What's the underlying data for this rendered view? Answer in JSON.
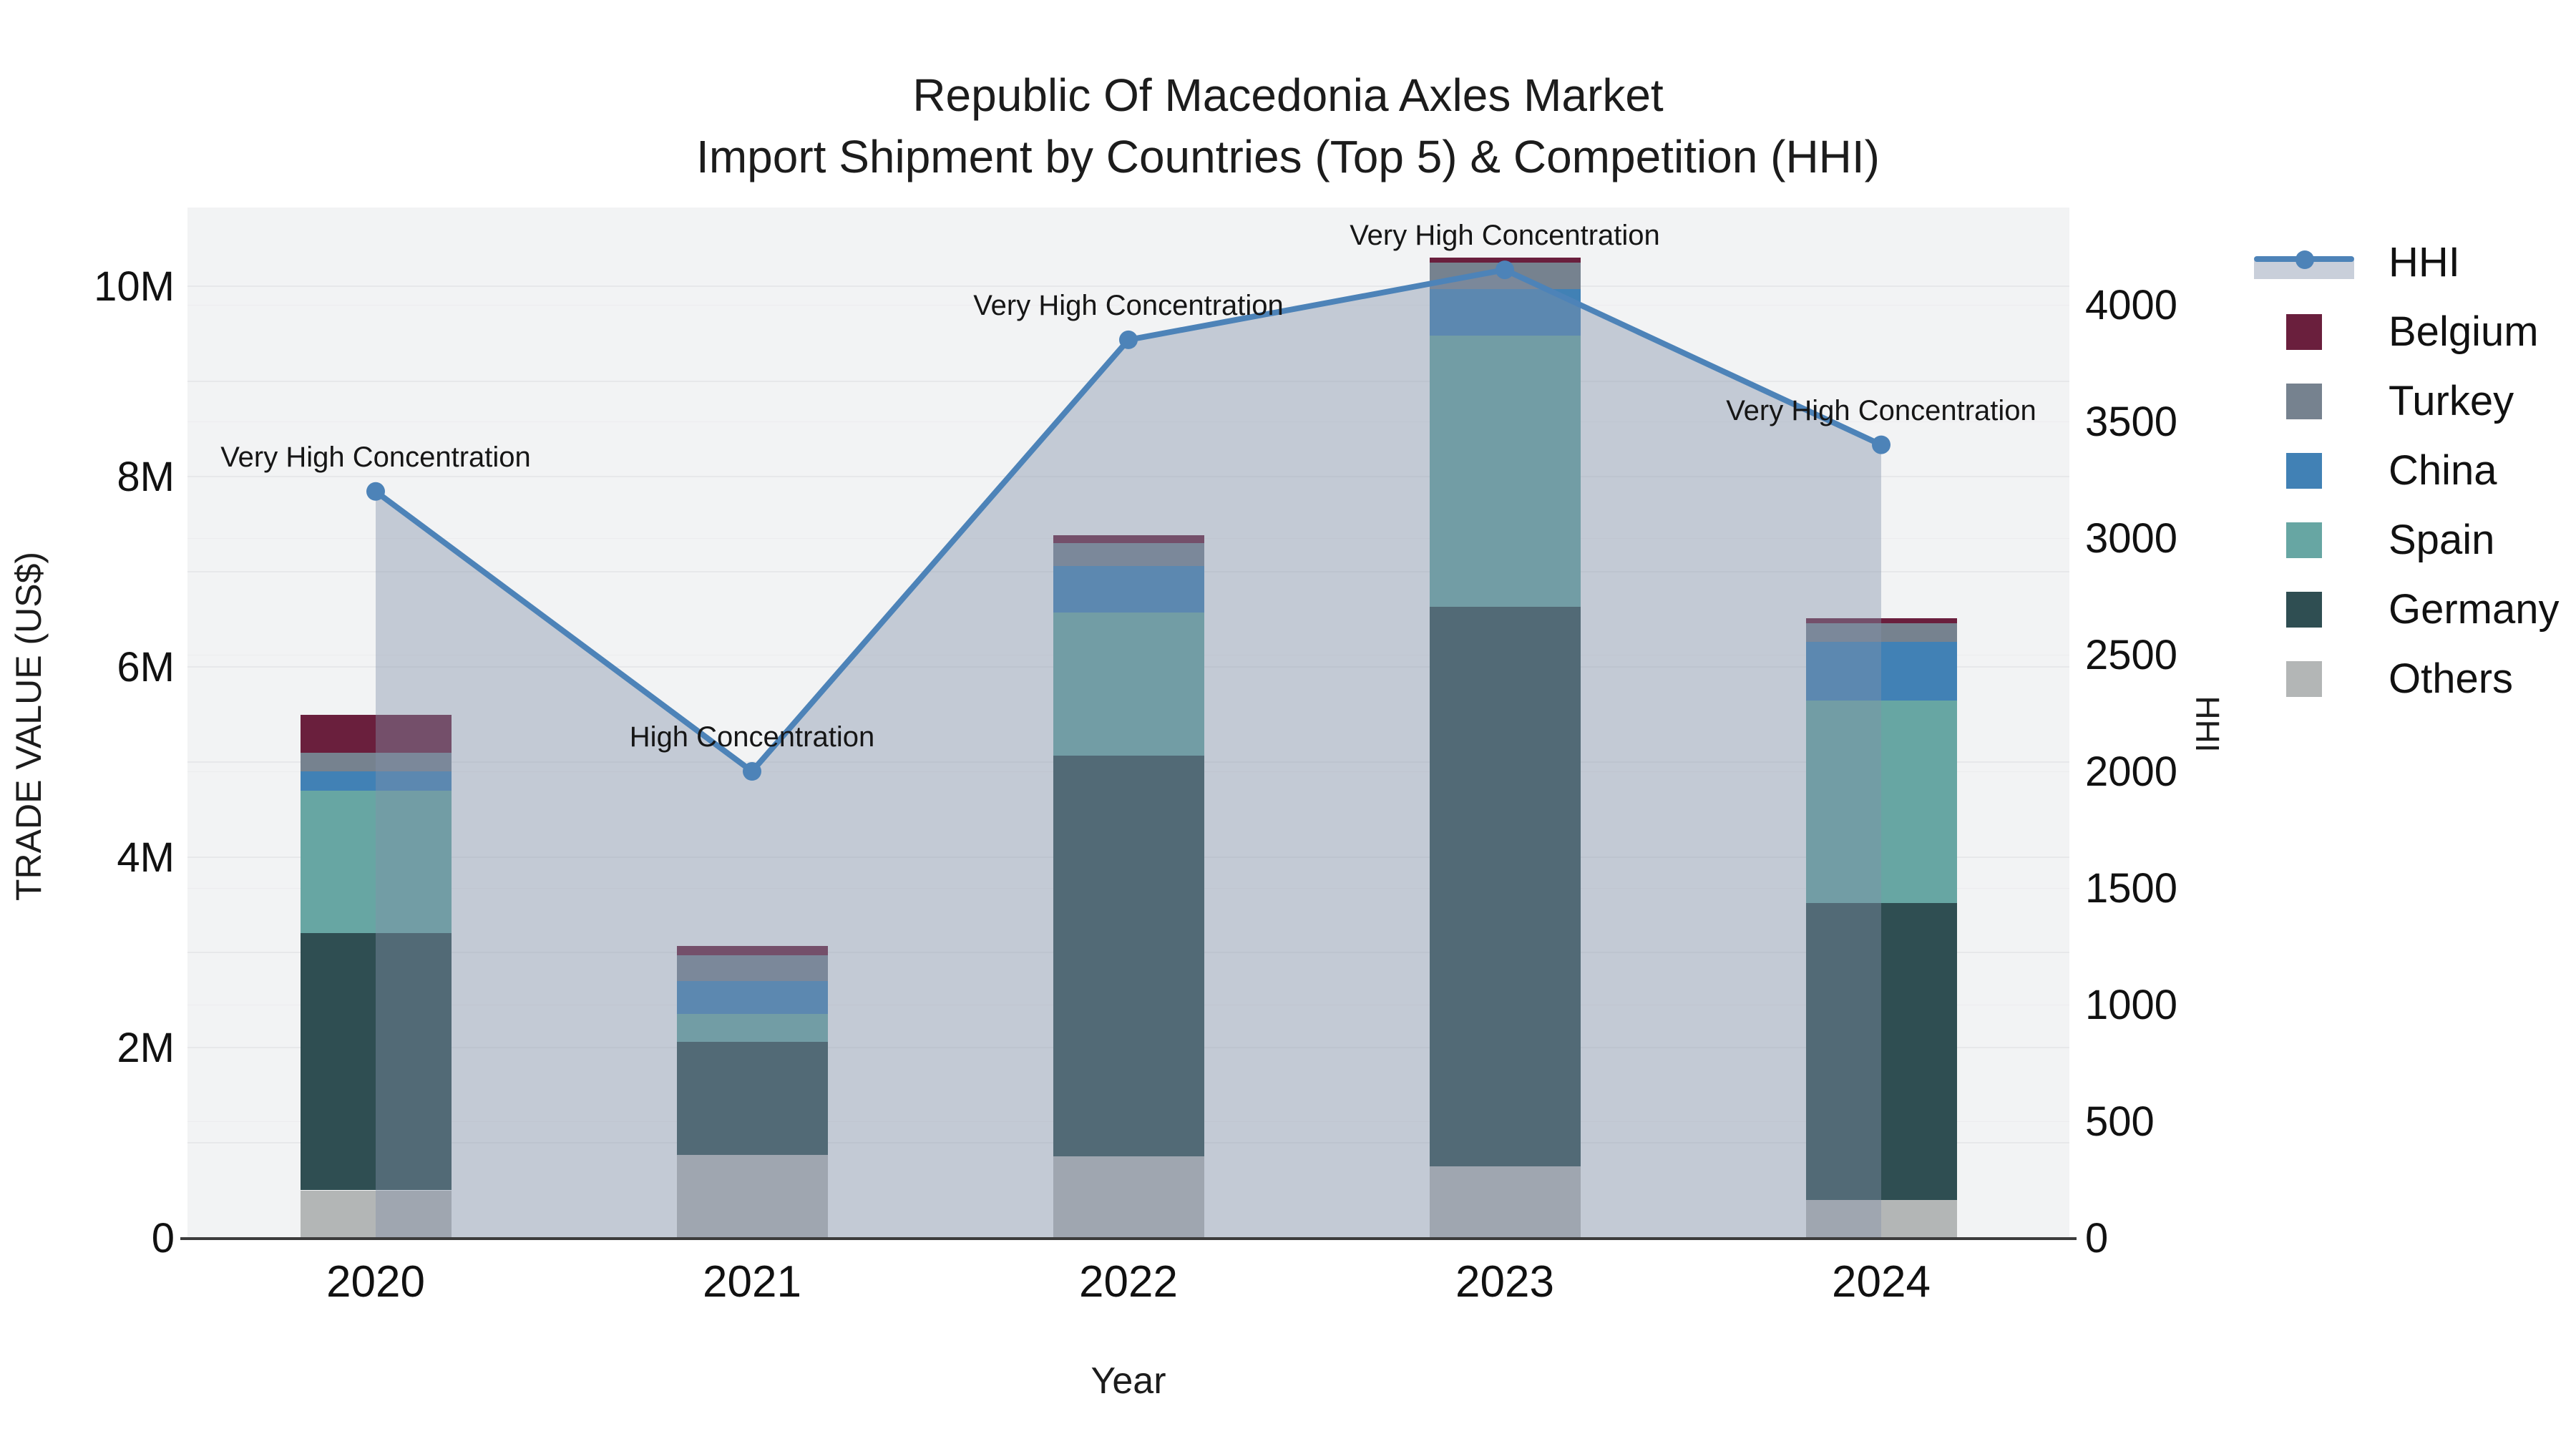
{
  "title": {
    "line1": "Republic Of Macedonia Axles Market",
    "line2": "Import Shipment by Countries (Top 5) & Competition (HHI)"
  },
  "axes": {
    "x": {
      "label": "Year"
    },
    "y_left": {
      "label": "TRADE VALUE (US$)",
      "tick_labels": [
        "0",
        "2M",
        "4M",
        "6M",
        "8M",
        "10M"
      ]
    },
    "y_right": {
      "label": "HHI",
      "tick_labels": [
        "0",
        "500",
        "1000",
        "1500",
        "2000",
        "2500",
        "3000",
        "3500",
        "4000"
      ]
    }
  },
  "legend": {
    "items": [
      {
        "label": "HHI",
        "type": "line",
        "color": "#4d83b8"
      },
      {
        "label": "Belgium",
        "type": "swatch",
        "color": "#6a1f3d"
      },
      {
        "label": "Turkey",
        "type": "swatch",
        "color": "#76828f"
      },
      {
        "label": "China",
        "type": "swatch",
        "color": "#4181b5"
      },
      {
        "label": "Spain",
        "type": "swatch",
        "color": "#67a6a3"
      },
      {
        "label": "Germany",
        "type": "swatch",
        "color": "#2f4e52"
      },
      {
        "label": "Others",
        "type": "swatch",
        "color": "#b3b6b6"
      }
    ]
  },
  "chart_data": {
    "type": "bar+line",
    "categories": [
      "2020",
      "2021",
      "2022",
      "2023",
      "2024"
    ],
    "xlabel": "Year",
    "ylabel_left": "TRADE VALUE (US$)",
    "ylabel_right": "HHI",
    "ylim_left_millions": [
      0,
      10
    ],
    "ylim_right": [
      0,
      4000
    ],
    "grid": true,
    "legend_position": "right-outside",
    "stack_order_bottom_to_top": [
      "Others",
      "Germany",
      "Spain",
      "China",
      "Turkey",
      "Belgium"
    ],
    "bar_series": [
      {
        "name": "Belgium",
        "color": "#6a1f3d",
        "values_millions_usd": [
          0.4,
          0.1,
          0.08,
          0.05,
          0.05
        ]
      },
      {
        "name": "Turkey",
        "color": "#76828f",
        "values_millions_usd": [
          0.2,
          0.27,
          0.24,
          0.28,
          0.2
        ]
      },
      {
        "name": "China",
        "color": "#4181b5",
        "values_millions_usd": [
          0.2,
          0.35,
          0.49,
          0.49,
          0.61
        ]
      },
      {
        "name": "Spain",
        "color": "#67a6a3",
        "values_millions_usd": [
          1.5,
          0.29,
          1.5,
          2.85,
          2.13
        ]
      },
      {
        "name": "Germany",
        "color": "#2f4e52",
        "values_millions_usd": [
          2.7,
          1.19,
          4.21,
          5.88,
          3.12
        ]
      },
      {
        "name": "Others",
        "color": "#b3b6b6",
        "values_millions_usd": [
          0.5,
          0.87,
          0.86,
          0.75,
          0.4
        ]
      }
    ],
    "totals_millions_usd": [
      5.5,
      3.07,
      7.38,
      10.3,
      6.51
    ],
    "line_series": {
      "name": "HHI",
      "color": "#4d83b8",
      "area_fill": "rgba(130,145,170,0.42)",
      "values": [
        3200,
        2000,
        3850,
        4150,
        3400
      ]
    },
    "point_annotations": [
      "Very High Concentration",
      "High Concentration",
      "Very High Concentration",
      "Very High Concentration",
      "Very High Concentration"
    ]
  }
}
